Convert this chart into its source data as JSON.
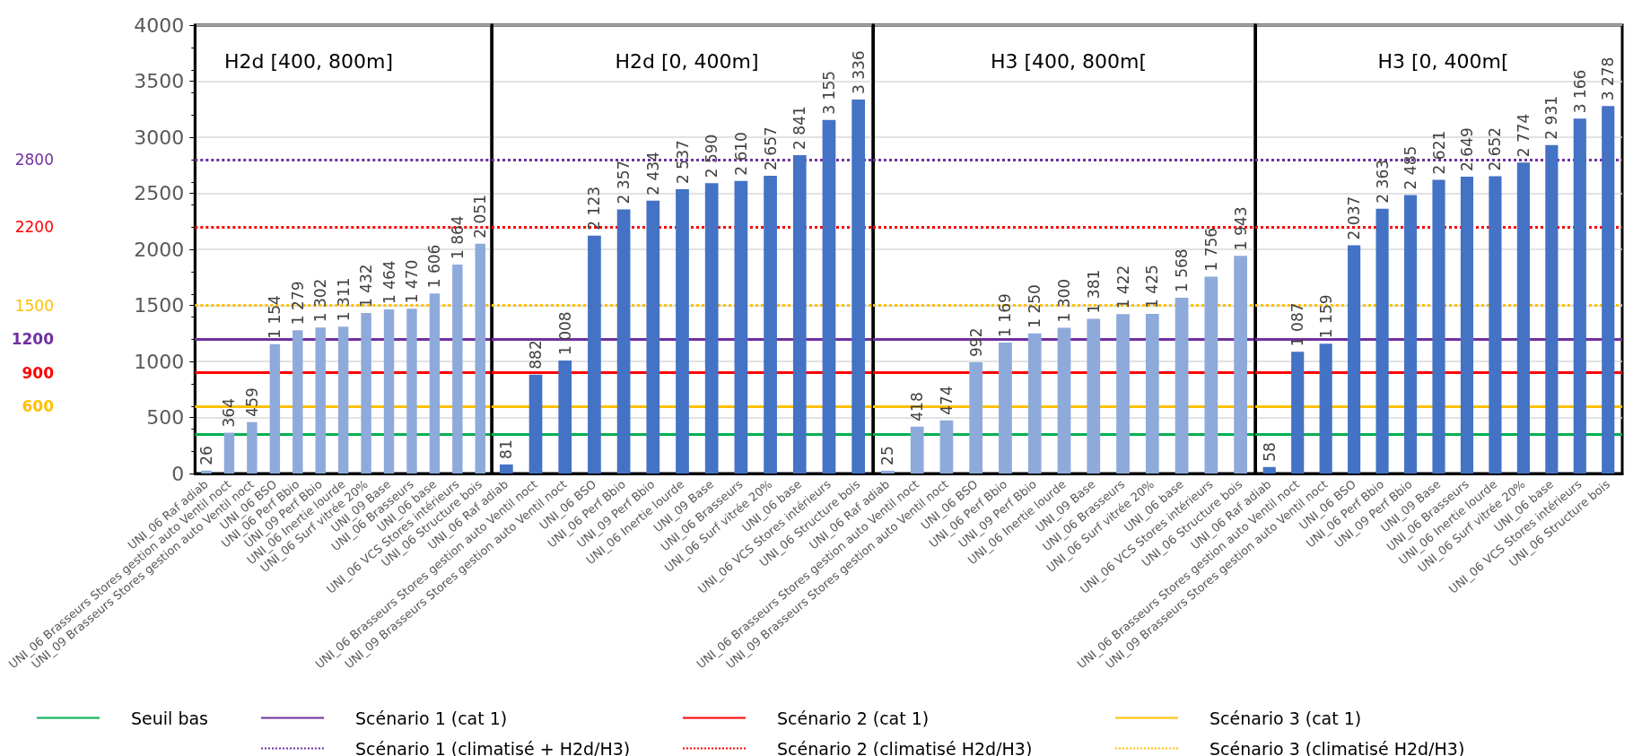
{
  "chart_data": [
    {
      "type": "bar",
      "title": "H2d [400, 800m]",
      "categories": [
        "UNI_06 Raf adiab",
        "UNI_06 Brasseurs Stores gestion auto Ventil noct",
        "UNI_09 Brasseurs Stores gestion auto Ventil noct",
        "UNI_06 BSO",
        "UNI_06 Perf Bbio",
        "UNI_09 Perf Bbio",
        "UNI_06 Inertie lourde",
        "UNI_06 Surf vitrée 20%",
        "UNI_09 Base",
        "UNI_06 Brasseurs",
        "UNI_06 base",
        "UNI_06 VCS Stores intérieurs",
        "UNI_06 Structure bois"
      ],
      "series": [
        {
          "color": "#8eaadb",
          "values": [
            26,
            364,
            459,
            1154,
            1279,
            1302,
            1311,
            1432,
            1464,
            1470,
            1606,
            1864,
            2051
          ],
          "value_labels": [
            "26",
            "364",
            "459",
            "1 154",
            "1 279",
            "1 302",
            "1 311",
            "1 432",
            "1 464",
            "1 470",
            "1 606",
            "1 864",
            "2 051"
          ]
        }
      ],
      "ylim": [
        0,
        4000
      ],
      "yticks": [
        0,
        500,
        1000,
        1500,
        2000,
        2500,
        3000,
        3500,
        4000
      ],
      "grid": "y",
      "legend": "bottom",
      "annotations": [
        "1200",
        "900",
        "600",
        "2800",
        "2200",
        "1500"
      ],
      "ref_lines": [
        {
          "axis": "y",
          "value": 1200,
          "label": "Scénario 1 (cat 1)",
          "color": "#7030a0",
          "line_style": "solid"
        },
        {
          "axis": "y",
          "value": 900,
          "label": "Scénario 2 (cat 1)",
          "color": "#ff0000",
          "line_style": "solid"
        },
        {
          "axis": "y",
          "value": 600,
          "label": "Scénario 3 (cat 1)",
          "color": "#ffc000",
          "line_style": "solid"
        },
        {
          "axis": "y",
          "value": 2800,
          "label": "Scénario 1 (climatisé + H2d/H3)",
          "color": "#7030a0",
          "line_style": "dotted"
        },
        {
          "axis": "y",
          "value": 2200,
          "label": "Scénario 2 (climatisé H2d/H3)",
          "color": "#ff0000",
          "line_style": "dotted"
        },
        {
          "axis": "y",
          "value": 1500,
          "label": "Scénario 3 (climatisé H2d/H3)",
          "color": "#ffc000",
          "line_style": "dotted"
        },
        {
          "axis": "y",
          "value": 350,
          "label": "Seuil bas",
          "color": "#00b050",
          "line_style": "solid"
        }
      ]
    },
    {
      "type": "bar",
      "title": "H2d [0, 400m]",
      "categories": [
        "UNI_06 Raf adiab",
        "UNI_06 Brasseurs Stores gestion auto Ventil noct",
        "UNI_09 Brasseurs Stores gestion auto Ventil noct",
        "UNI_06 BSO",
        "UNI_06 Perf Bbio",
        "UNI_09 Perf Bbio",
        "UNI_06 Inertie lourde",
        "UNI_09 Base",
        "UNI_06 Brasseurs",
        "UNI_06 Surf vitrée 20%",
        "UNI_06 base",
        "UNI_06 VCS Stores intérieurs",
        "UNI_06 Structure bois"
      ],
      "series": [
        {
          "color": "#4472c4",
          "values": [
            81,
            882,
            1008,
            2123,
            2357,
            2434,
            2537,
            2590,
            2610,
            2657,
            2841,
            3155,
            3336
          ],
          "value_labels": [
            "81",
            "882",
            "1 008",
            "2 123",
            "2 357",
            "2 434",
            "2 537",
            "2 590",
            "2 610",
            "2 657",
            "2 841",
            "3 155",
            "3 336"
          ]
        }
      ],
      "ylim": [
        0,
        4000
      ],
      "yticks": [
        0,
        500,
        1000,
        1500,
        2000,
        2500,
        3000,
        3500,
        4000
      ],
      "grid": "y",
      "tick_labels": "x",
      "ref_lines": [
        {
          "axis": "y",
          "value": 350,
          "color": "#00b050",
          "line_style": "solid"
        },
        {
          "axis": "y",
          "value": 1200,
          "color": "#7030a0",
          "line_style": "solid"
        },
        {
          "axis": "y",
          "value": 900,
          "color": "#ff0000",
          "line_style": "solid"
        },
        {
          "axis": "y",
          "value": 600,
          "color": "#ffc000",
          "line_style": "solid"
        },
        {
          "axis": "y",
          "value": 2800,
          "color": "#7030a0",
          "line_style": "dotted"
        },
        {
          "axis": "y",
          "value": 2200,
          "color": "#ff0000",
          "line_style": "dotted"
        },
        {
          "axis": "y",
          "value": 1500,
          "color": "#ffc000",
          "line_style": "dotted"
        }
      ]
    },
    {
      "type": "bar",
      "title": "H3 [400, 800m[",
      "categories": [
        "UNI_06 Raf adiab",
        "UNI_06 Brasseurs Stores gestion auto Ventil noct",
        "UNI_09 Brasseurs Stores gestion auto Ventil noct",
        "UNI_06 BSO",
        "UNI_06 Perf Bbio",
        "UNI_09 Perf Bbio",
        "UNI_06 Inertie lourde",
        "UNI_09 Base",
        "UNI_06 Brasseurs",
        "UNI_06 Surf vitrée 20%",
        "UNI_06 base",
        "UNI_06 VCS Stores intérieurs",
        "UNI_06 Structure bois"
      ],
      "series": [
        {
          "color": "#8eaadb",
          "values": [
            25,
            418,
            474,
            992,
            1169,
            1250,
            1300,
            1381,
            1422,
            1425,
            1568,
            1756,
            1943
          ],
          "value_labels": [
            "25",
            "418",
            "474",
            "992",
            "1 169",
            "1 250",
            "1 300",
            "1 381",
            "1 422",
            "1 425",
            "1 568",
            "1 756",
            "1 943"
          ]
        }
      ],
      "ylim": [
        0,
        4000
      ],
      "yticks": [
        0,
        500,
        1000,
        1500,
        2000,
        2500,
        3000,
        3500,
        4000
      ],
      "grid": "y",
      "tick_labels": "x",
      "ref_lines": [
        {
          "axis": "y",
          "value": 350,
          "color": "#00b050",
          "line_style": "solid"
        },
        {
          "axis": "y",
          "value": 1200,
          "color": "#7030a0",
          "line_style": "solid"
        },
        {
          "axis": "y",
          "value": 900,
          "color": "#ff0000",
          "line_style": "solid"
        },
        {
          "axis": "y",
          "value": 600,
          "color": "#ffc000",
          "line_style": "solid"
        },
        {
          "axis": "y",
          "value": 2800,
          "color": "#7030a0",
          "line_style": "dotted"
        },
        {
          "axis": "y",
          "value": 2200,
          "color": "#ff0000",
          "line_style": "dotted"
        },
        {
          "axis": "y",
          "value": 1500,
          "color": "#ffc000",
          "line_style": "dotted"
        }
      ]
    },
    {
      "type": "bar",
      "title": "H3 [0, 400m[",
      "categories": [
        "UNI_06 Raf adiab",
        "UNI_06 Brasseurs Stores gestion auto Ventil noct",
        "UNI_09 Brasseurs Stores gestion auto Ventil noct",
        "UNI_06 BSO",
        "UNI_06 Perf Bbio",
        "UNI_09 Perf Bbio",
        "UNI_09 Base",
        "UNI_06 Brasseurs",
        "UNI_06 Inertie lourde",
        "UNI_06 Surf vitrée 20%",
        "UNI_06 base",
        "UNI_06 VCS Stores intérieurs",
        "UNI_06 Structure bois"
      ],
      "series": [
        {
          "color": "#4472c4",
          "values": [
            58,
            1087,
            1159,
            2037,
            2363,
            2485,
            2621,
            2649,
            2652,
            2774,
            2931,
            3166,
            3278
          ],
          "value_labels": [
            "58",
            "1 087",
            "1 159",
            "2 037",
            "2 363",
            "2 485",
            "2 621",
            "2 649",
            "2 652",
            "2 774",
            "2 931",
            "3 166",
            "3 278"
          ]
        }
      ],
      "ylim": [
        0,
        4000
      ],
      "yticks": [
        0,
        500,
        1000,
        1500,
        2000,
        2500,
        3000,
        3500,
        4000
      ],
      "grid": "y",
      "tick_labels": "x",
      "ref_lines": [
        {
          "axis": "y",
          "value": 350,
          "color": "#00b050",
          "line_style": "solid"
        },
        {
          "axis": "y",
          "value": 1200,
          "color": "#7030a0",
          "line_style": "solid"
        },
        {
          "axis": "y",
          "value": 900,
          "color": "#ff0000",
          "line_style": "solid"
        },
        {
          "axis": "y",
          "value": 600,
          "color": "#ffc000",
          "line_style": "solid"
        },
        {
          "axis": "y",
          "value": 2800,
          "color": "#7030a0",
          "line_style": "dotted"
        },
        {
          "axis": "y",
          "value": 2200,
          "color": "#ff0000",
          "line_style": "dotted"
        },
        {
          "axis": "y",
          "value": 1500,
          "color": "#ffc000",
          "line_style": "dotted"
        }
      ]
    }
  ]
}
